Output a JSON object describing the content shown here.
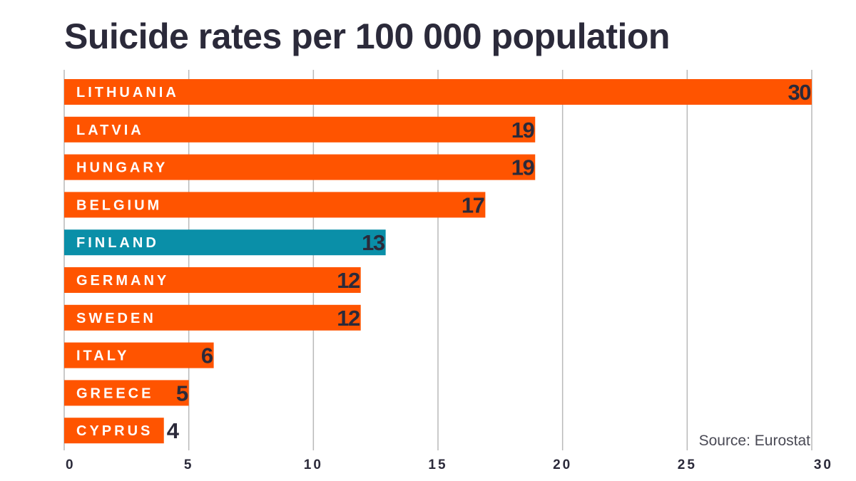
{
  "chart_data": {
    "type": "bar",
    "orientation": "horizontal",
    "title": "Suicide rates per 100 000 population",
    "categories": [
      "LITHUANIA",
      "LATVIA",
      "HUNGARY",
      "BELGIUM",
      "FINLAND",
      "GERMANY",
      "SWEDEN",
      "ITALY",
      "GREECE",
      "CYPRUS"
    ],
    "values": [
      30,
      19,
      19,
      17,
      13,
      12,
      12,
      6,
      5,
      4
    ],
    "display_values": [
      "30",
      "19",
      "19",
      "17",
      "13",
      "12",
      "12",
      "6",
      "5",
      "4"
    ],
    "plot_values": [
      30,
      18.9,
      18.9,
      16.9,
      12.9,
      11.9,
      11.9,
      6,
      5,
      4
    ],
    "highlight": "FINLAND",
    "xlim": [
      0,
      30
    ],
    "xticks": [
      0,
      5,
      10,
      15,
      20,
      25,
      30
    ],
    "xlabel": "",
    "ylabel": "",
    "grid": true,
    "source": "Source: Eurostat",
    "colors": {
      "default_bar": "#ff5400",
      "highlight_bar": "#0a8fa8",
      "grid": "#b9b9b9",
      "text": "#2b2a3a"
    }
  }
}
